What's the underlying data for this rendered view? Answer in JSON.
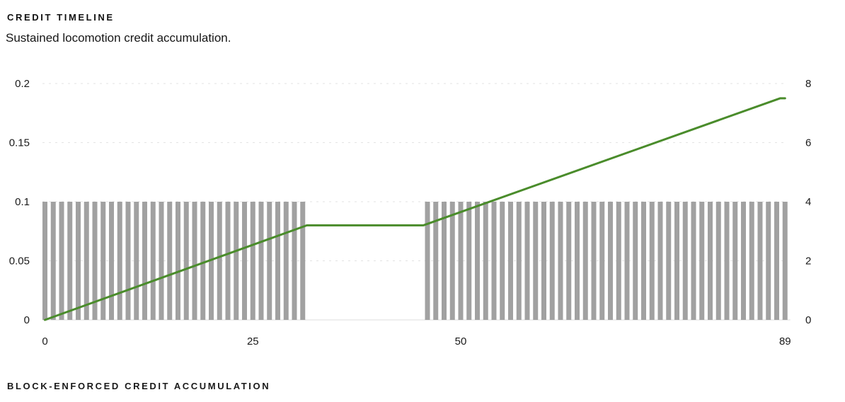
{
  "header": {
    "title": "CREDIT TIMELINE",
    "subtitle": "Sustained locomotion credit accumulation."
  },
  "footer": {
    "label": "BLOCK-ENFORCED CREDIT ACCUMULATION"
  },
  "chart_data": {
    "type": "line",
    "title": "CREDIT TIMELINE",
    "subtitle": "Sustained locomotion credit accumulation.",
    "footer_label": "BLOCK-ENFORCED CREDIT ACCUMULATION",
    "x_axis": {
      "min": 0,
      "max": 89,
      "ticks": [
        0,
        25,
        50,
        89
      ],
      "tick_labels": [
        "0",
        "25",
        "50",
        "89"
      ]
    },
    "y_axis_left": {
      "min": 0,
      "max": 0.2,
      "ticks": [
        0,
        0.05,
        0.1,
        0.15,
        0.2
      ],
      "tick_labels": [
        "0",
        "0.05",
        "0.1",
        "0.15",
        "0.2"
      ]
    },
    "y_axis_right": {
      "min": 0,
      "max": 8,
      "ticks": [
        0,
        2,
        4,
        6,
        8
      ],
      "tick_labels": [
        "0",
        "2",
        "4",
        "6",
        "8"
      ]
    },
    "grid": {
      "shown": true,
      "style": "dashed",
      "color": "#e3e3e3",
      "baseline_color": "#e8e8e8"
    },
    "series": [
      {
        "name": "credit-line",
        "type": "line",
        "axis": "left",
        "color": "#4a8c2b",
        "points": [
          [
            0,
            0
          ],
          [
            31.5,
            0.08
          ],
          [
            45.5,
            0.08
          ],
          [
            88.4,
            0.1875
          ],
          [
            89,
            0.1875
          ]
        ]
      },
      {
        "name": "block-enforced-bars",
        "type": "bar",
        "axis": "left",
        "color": "#a1a1a1",
        "bar_value": 0.1,
        "bar_blocks": [
          [
            0,
            31
          ],
          [
            46,
            89
          ]
        ]
      }
    ]
  },
  "colors": {
    "background": "#ffffff",
    "line_green": "#4a8c2b",
    "bar_gray": "#a1a1a1",
    "grid_gray": "#e3e3e3",
    "text_dark": "#1a1a1a"
  }
}
